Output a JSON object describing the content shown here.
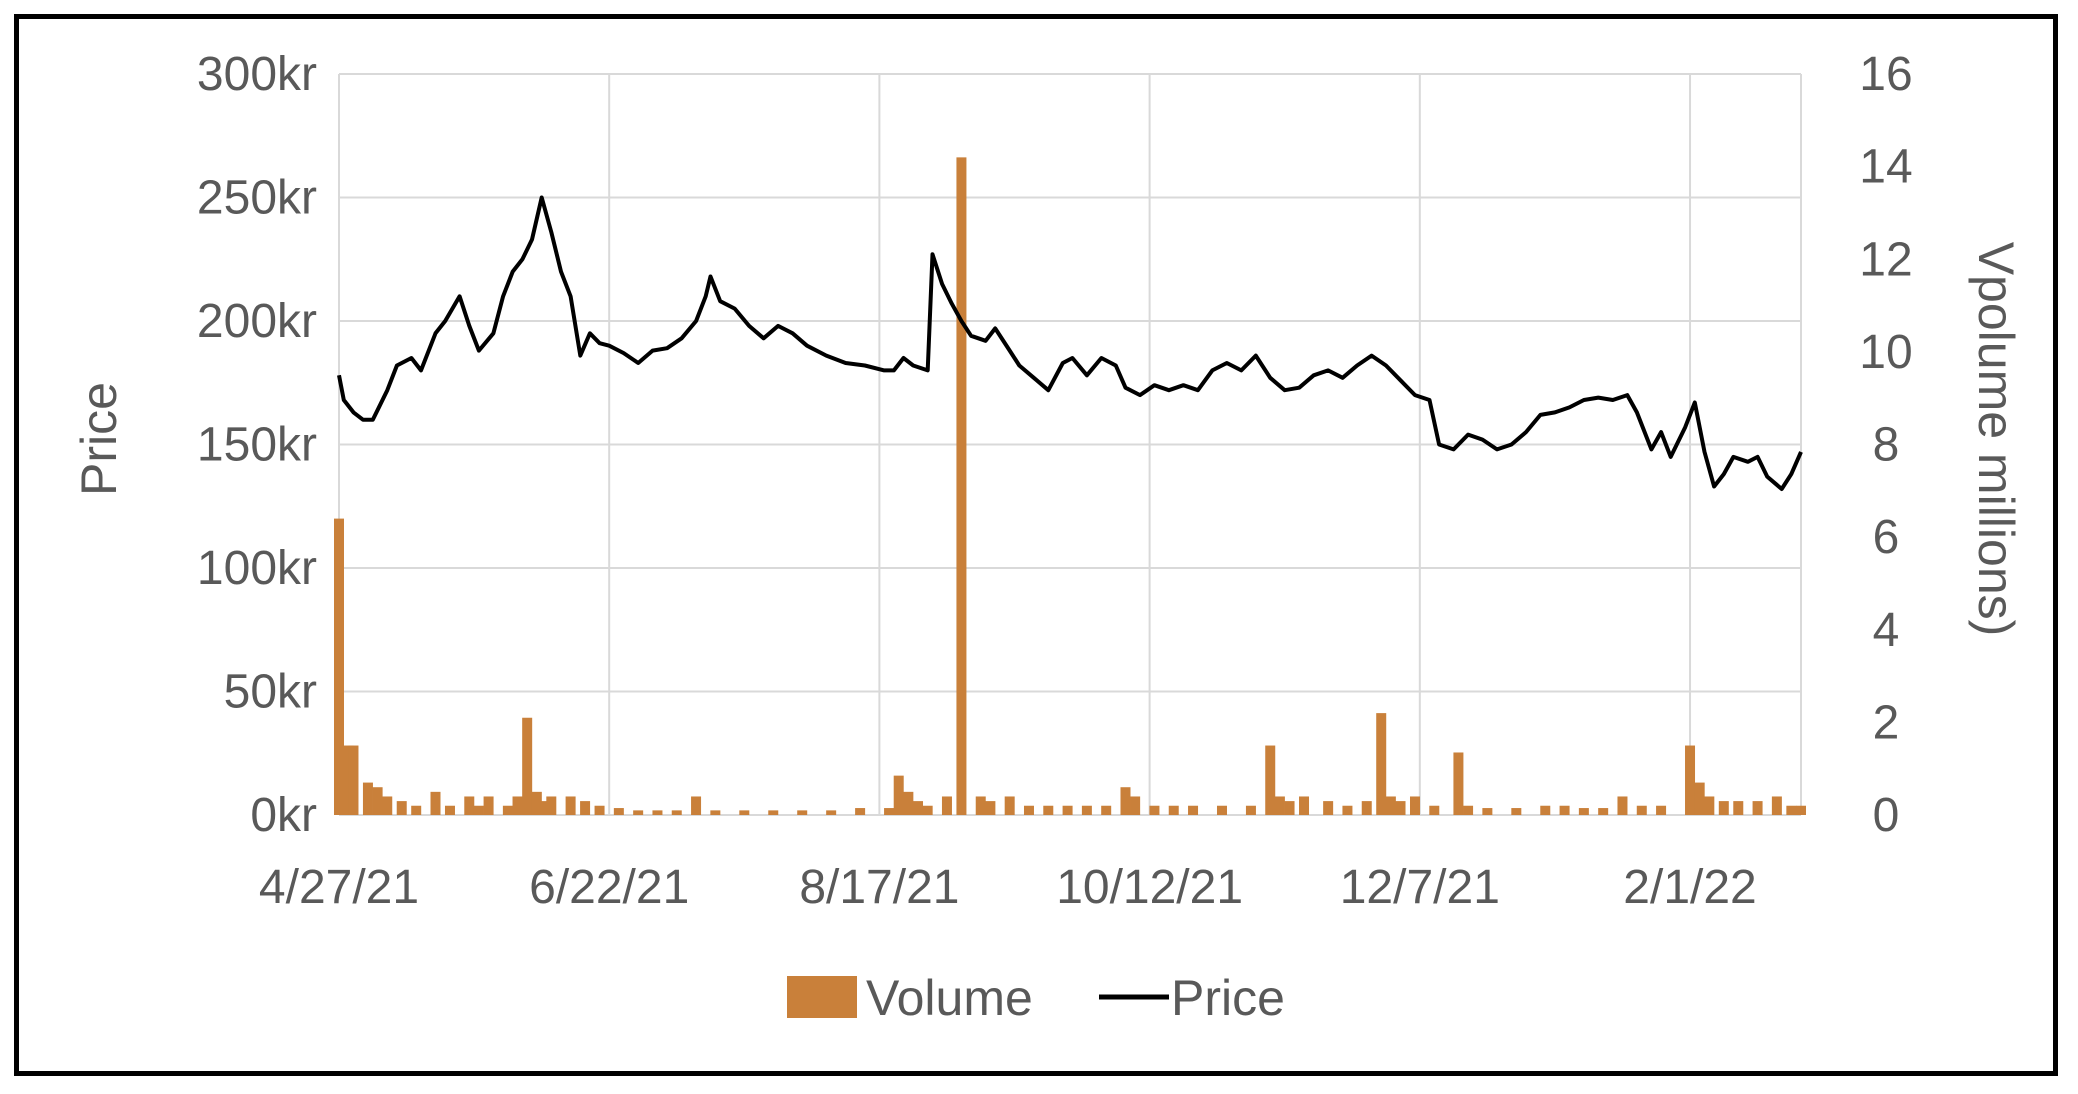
{
  "chart_data": {
    "type": "bar+line",
    "title": "",
    "xlabel": "",
    "ylabel": "Price",
    "y2label": "Vpolume millions)",
    "x_ticks": [
      "4/27/21",
      "6/22/21",
      "8/17/21",
      "10/12/21",
      "12/7/21",
      "2/1/22"
    ],
    "x_range": [
      "2021-04-27",
      "2022-02-24"
    ],
    "ylim": [
      0,
      300
    ],
    "y_ticks": [
      "0kr",
      "50kr",
      "100kr",
      "150kr",
      "200kr",
      "250kr",
      "300kr"
    ],
    "y2lim": [
      0,
      16
    ],
    "y2_ticks": [
      "0",
      "2",
      "4",
      "6",
      "8",
      "10",
      "12",
      "14",
      "16"
    ],
    "grid": true,
    "legend_position": "bottom",
    "series": [
      {
        "name": "Volume",
        "type": "bar",
        "axis": "right",
        "color": "#C9803A",
        "points": [
          [
            "2021-04-27",
            6.4
          ],
          [
            "2021-04-29",
            1.5
          ],
          [
            "2021-04-30",
            1.5
          ],
          [
            "2021-05-03",
            0.7
          ],
          [
            "2021-05-05",
            0.6
          ],
          [
            "2021-05-07",
            0.4
          ],
          [
            "2021-05-10",
            0.3
          ],
          [
            "2021-05-13",
            0.2
          ],
          [
            "2021-05-17",
            0.5
          ],
          [
            "2021-05-20",
            0.2
          ],
          [
            "2021-05-24",
            0.4
          ],
          [
            "2021-05-26",
            0.2
          ],
          [
            "2021-05-28",
            0.4
          ],
          [
            "2021-06-01",
            0.2
          ],
          [
            "2021-06-03",
            0.4
          ],
          [
            "2021-06-05",
            2.1
          ],
          [
            "2021-06-07",
            0.5
          ],
          [
            "2021-06-09",
            0.3
          ],
          [
            "2021-06-10",
            0.4
          ],
          [
            "2021-06-14",
            0.4
          ],
          [
            "2021-06-17",
            0.3
          ],
          [
            "2021-06-20",
            0.2
          ],
          [
            "2021-06-24",
            0.15
          ],
          [
            "2021-06-28",
            0.1
          ],
          [
            "2021-07-02",
            0.1
          ],
          [
            "2021-07-06",
            0.1
          ],
          [
            "2021-07-10",
            0.4
          ],
          [
            "2021-07-14",
            0.1
          ],
          [
            "2021-07-20",
            0.1
          ],
          [
            "2021-07-26",
            0.1
          ],
          [
            "2021-08-01",
            0.1
          ],
          [
            "2021-08-07",
            0.1
          ],
          [
            "2021-08-13",
            0.15
          ],
          [
            "2021-08-19",
            0.15
          ],
          [
            "2021-08-21",
            0.85
          ],
          [
            "2021-08-23",
            0.5
          ],
          [
            "2021-08-25",
            0.3
          ],
          [
            "2021-08-27",
            0.2
          ],
          [
            "2021-08-31",
            0.4
          ],
          [
            "2021-09-03",
            14.2
          ],
          [
            "2021-09-07",
            0.4
          ],
          [
            "2021-09-09",
            0.3
          ],
          [
            "2021-09-13",
            0.4
          ],
          [
            "2021-09-17",
            0.2
          ],
          [
            "2021-09-21",
            0.2
          ],
          [
            "2021-09-25",
            0.2
          ],
          [
            "2021-09-29",
            0.2
          ],
          [
            "2021-10-03",
            0.2
          ],
          [
            "2021-10-07",
            0.6
          ],
          [
            "2021-10-09",
            0.4
          ],
          [
            "2021-10-13",
            0.2
          ],
          [
            "2021-10-17",
            0.2
          ],
          [
            "2021-10-21",
            0.2
          ],
          [
            "2021-10-27",
            0.2
          ],
          [
            "2021-11-02",
            0.2
          ],
          [
            "2021-11-06",
            1.5
          ],
          [
            "2021-11-08",
            0.4
          ],
          [
            "2021-11-10",
            0.3
          ],
          [
            "2021-11-13",
            0.4
          ],
          [
            "2021-11-18",
            0.3
          ],
          [
            "2021-11-22",
            0.2
          ],
          [
            "2021-11-26",
            0.3
          ],
          [
            "2021-11-29",
            2.2
          ],
          [
            "2021-12-01",
            0.4
          ],
          [
            "2021-12-03",
            0.3
          ],
          [
            "2021-12-06",
            0.4
          ],
          [
            "2021-12-10",
            0.2
          ],
          [
            "2021-12-15",
            1.35
          ],
          [
            "2021-12-17",
            0.2
          ],
          [
            "2021-12-21",
            0.15
          ],
          [
            "2021-12-27",
            0.15
          ],
          [
            "2022-01-02",
            0.2
          ],
          [
            "2022-01-06",
            0.2
          ],
          [
            "2022-01-10",
            0.15
          ],
          [
            "2022-01-14",
            0.15
          ],
          [
            "2022-01-18",
            0.4
          ],
          [
            "2022-01-22",
            0.2
          ],
          [
            "2022-01-26",
            0.2
          ],
          [
            "2022-02-01",
            1.5
          ],
          [
            "2022-02-03",
            0.7
          ],
          [
            "2022-02-05",
            0.4
          ],
          [
            "2022-02-08",
            0.3
          ],
          [
            "2022-02-11",
            0.3
          ],
          [
            "2022-02-15",
            0.3
          ],
          [
            "2022-02-19",
            0.4
          ],
          [
            "2022-02-22",
            0.2
          ],
          [
            "2022-02-24",
            0.2
          ]
        ]
      },
      {
        "name": "Price",
        "type": "line",
        "axis": "left",
        "color": "#000000",
        "points": [
          [
            "2021-04-27",
            178
          ],
          [
            "2021-04-28",
            168
          ],
          [
            "2021-04-30",
            163
          ],
          [
            "2021-05-02",
            160
          ],
          [
            "2021-05-04",
            160
          ],
          [
            "2021-05-07",
            172
          ],
          [
            "2021-05-09",
            182
          ],
          [
            "2021-05-12",
            185
          ],
          [
            "2021-05-14",
            180
          ],
          [
            "2021-05-17",
            195
          ],
          [
            "2021-05-19",
            200
          ],
          [
            "2021-05-22",
            210
          ],
          [
            "2021-05-24",
            198
          ],
          [
            "2021-05-26",
            188
          ],
          [
            "2021-05-29",
            195
          ],
          [
            "2021-05-31",
            210
          ],
          [
            "2021-06-02",
            220
          ],
          [
            "2021-06-04",
            225
          ],
          [
            "2021-06-06",
            233
          ],
          [
            "2021-06-08",
            250
          ],
          [
            "2021-06-10",
            236
          ],
          [
            "2021-06-12",
            220
          ],
          [
            "2021-06-14",
            210
          ],
          [
            "2021-06-16",
            186
          ],
          [
            "2021-06-18",
            195
          ],
          [
            "2021-06-20",
            191
          ],
          [
            "2021-06-22",
            190
          ],
          [
            "2021-06-25",
            187
          ],
          [
            "2021-06-28",
            183
          ],
          [
            "2021-07-01",
            188
          ],
          [
            "2021-07-04",
            189
          ],
          [
            "2021-07-07",
            193
          ],
          [
            "2021-07-10",
            200
          ],
          [
            "2021-07-12",
            210
          ],
          [
            "2021-07-13",
            218
          ],
          [
            "2021-07-15",
            208
          ],
          [
            "2021-07-18",
            205
          ],
          [
            "2021-07-21",
            198
          ],
          [
            "2021-07-24",
            193
          ],
          [
            "2021-07-27",
            198
          ],
          [
            "2021-07-30",
            195
          ],
          [
            "2021-08-02",
            190
          ],
          [
            "2021-08-06",
            186
          ],
          [
            "2021-08-10",
            183
          ],
          [
            "2021-08-14",
            182
          ],
          [
            "2021-08-18",
            180
          ],
          [
            "2021-08-20",
            180
          ],
          [
            "2021-08-22",
            185
          ],
          [
            "2021-08-24",
            182
          ],
          [
            "2021-08-27",
            180
          ],
          [
            "2021-08-28",
            227
          ],
          [
            "2021-08-30",
            215
          ],
          [
            "2021-09-01",
            207
          ],
          [
            "2021-09-03",
            200
          ],
          [
            "2021-09-05",
            194
          ],
          [
            "2021-09-08",
            192
          ],
          [
            "2021-09-10",
            197
          ],
          [
            "2021-09-13",
            188
          ],
          [
            "2021-09-15",
            182
          ],
          [
            "2021-09-18",
            177
          ],
          [
            "2021-09-21",
            172
          ],
          [
            "2021-09-24",
            183
          ],
          [
            "2021-09-26",
            185
          ],
          [
            "2021-09-29",
            178
          ],
          [
            "2021-10-02",
            185
          ],
          [
            "2021-10-05",
            182
          ],
          [
            "2021-10-07",
            173
          ],
          [
            "2021-10-10",
            170
          ],
          [
            "2021-10-13",
            174
          ],
          [
            "2021-10-16",
            172
          ],
          [
            "2021-10-19",
            174
          ],
          [
            "2021-10-22",
            172
          ],
          [
            "2021-10-25",
            180
          ],
          [
            "2021-10-28",
            183
          ],
          [
            "2021-10-31",
            180
          ],
          [
            "2021-11-03",
            186
          ],
          [
            "2021-11-06",
            177
          ],
          [
            "2021-11-09",
            172
          ],
          [
            "2021-11-12",
            173
          ],
          [
            "2021-11-15",
            178
          ],
          [
            "2021-11-18",
            180
          ],
          [
            "2021-11-21",
            177
          ],
          [
            "2021-11-24",
            182
          ],
          [
            "2021-11-27",
            186
          ],
          [
            "2021-11-30",
            182
          ],
          [
            "2021-12-03",
            176
          ],
          [
            "2021-12-06",
            170
          ],
          [
            "2021-12-09",
            168
          ],
          [
            "2021-12-11",
            150
          ],
          [
            "2021-12-14",
            148
          ],
          [
            "2021-12-17",
            154
          ],
          [
            "2021-12-20",
            152
          ],
          [
            "2021-12-23",
            148
          ],
          [
            "2021-12-26",
            150
          ],
          [
            "2021-12-29",
            155
          ],
          [
            "2022-01-01",
            162
          ],
          [
            "2022-01-04",
            163
          ],
          [
            "2022-01-07",
            165
          ],
          [
            "2022-01-10",
            168
          ],
          [
            "2022-01-13",
            169
          ],
          [
            "2022-01-16",
            168
          ],
          [
            "2022-01-19",
            170
          ],
          [
            "2022-01-21",
            163
          ],
          [
            "2022-01-24",
            148
          ],
          [
            "2022-01-26",
            155
          ],
          [
            "2022-01-28",
            145
          ],
          [
            "2022-01-31",
            157
          ],
          [
            "2022-02-02",
            167
          ],
          [
            "2022-02-04",
            147
          ],
          [
            "2022-02-06",
            133
          ],
          [
            "2022-02-08",
            138
          ],
          [
            "2022-02-10",
            145
          ],
          [
            "2022-02-13",
            143
          ],
          [
            "2022-02-15",
            145
          ],
          [
            "2022-02-17",
            137
          ],
          [
            "2022-02-20",
            132
          ],
          [
            "2022-02-22",
            138
          ],
          [
            "2022-02-24",
            147
          ]
        ]
      }
    ]
  }
}
